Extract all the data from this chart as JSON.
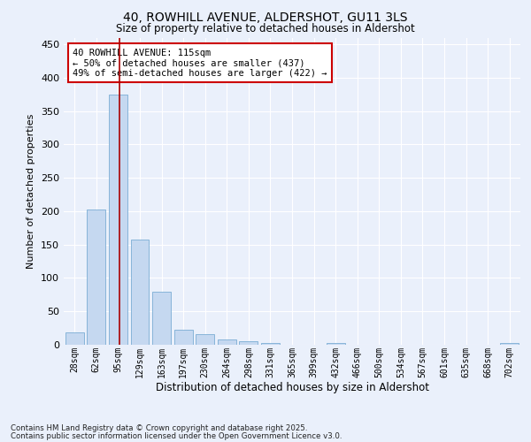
{
  "title": "40, ROWHILL AVENUE, ALDERSHOT, GU11 3LS",
  "subtitle": "Size of property relative to detached houses in Aldershot",
  "xlabel": "Distribution of detached houses by size in Aldershot",
  "ylabel": "Number of detached properties",
  "bar_labels": [
    "28sqm",
    "62sqm",
    "95sqm",
    "129sqm",
    "163sqm",
    "197sqm",
    "230sqm",
    "264sqm",
    "298sqm",
    "331sqm",
    "365sqm",
    "399sqm",
    "432sqm",
    "466sqm",
    "500sqm",
    "534sqm",
    "567sqm",
    "601sqm",
    "635sqm",
    "668sqm",
    "702sqm"
  ],
  "bar_values": [
    18,
    202,
    375,
    157,
    79,
    23,
    16,
    8,
    5,
    3,
    0,
    0,
    2,
    0,
    0,
    0,
    0,
    0,
    0,
    0,
    2
  ],
  "bar_color": "#c5d8f0",
  "bar_edge_color": "#7aadd4",
  "bg_color": "#eaf0fb",
  "grid_color": "#ffffff",
  "vline_color": "#aa0000",
  "annotation_text": "40 ROWHILL AVENUE: 115sqm\n← 50% of detached houses are smaller (437)\n49% of semi-detached houses are larger (422) →",
  "annotation_box_color": "#ffffff",
  "annotation_box_edgecolor": "#cc0000",
  "ylim": [
    0,
    460
  ],
  "yticks": [
    0,
    50,
    100,
    150,
    200,
    250,
    300,
    350,
    400,
    450
  ],
  "footnote1": "Contains HM Land Registry data © Crown copyright and database right 2025.",
  "footnote2": "Contains public sector information licensed under the Open Government Licence v3.0."
}
